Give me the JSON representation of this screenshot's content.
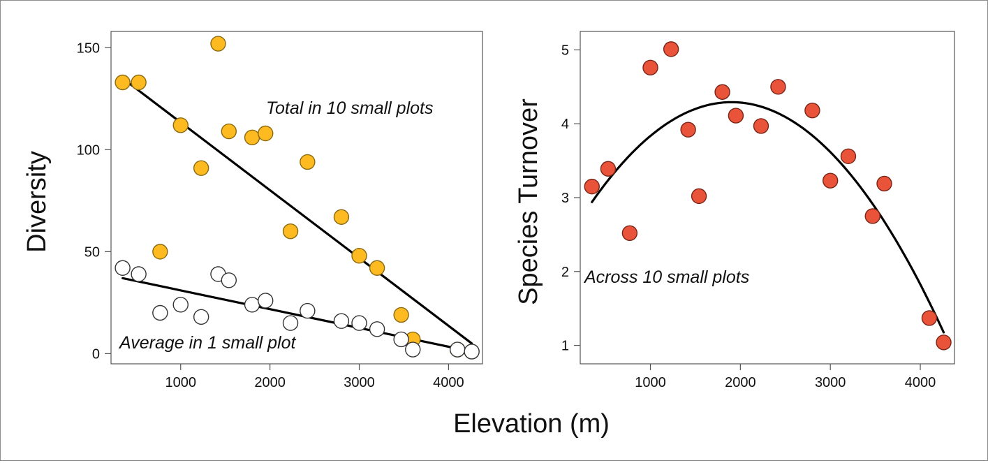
{
  "figure": {
    "shared_xlabel": "Elevation (m)"
  },
  "chart_data": [
    {
      "type": "scatter",
      "title": "",
      "xlabel": "",
      "ylabel": "Diversity",
      "xlim": [
        220,
        4380
      ],
      "ylim": [
        -5,
        158
      ],
      "xticks": [
        1000,
        2000,
        3000,
        4000
      ],
      "yticks": [
        0,
        50,
        100,
        150
      ],
      "grid": false,
      "annotations": [
        {
          "text": "Total in 10 small plots",
          "series": "total"
        },
        {
          "text": "Average in 1 small plot",
          "series": "average"
        }
      ],
      "series": [
        {
          "key": "total",
          "color": "#FDBA21",
          "stroke": "#8a6a10",
          "x": [
            350,
            530,
            770,
            1000,
            1230,
            1420,
            1540,
            1800,
            1950,
            2230,
            2420,
            2800,
            3000,
            3200,
            3470,
            3600,
            4100,
            4260
          ],
          "y": [
            133,
            133,
            50,
            112,
            91,
            152,
            109,
            106,
            108,
            60,
            94,
            67,
            48,
            42,
            19,
            7,
            2,
            1
          ],
          "fit": {
            "kind": "linear",
            "x": [
              350,
              4260
            ],
            "y": [
              135,
              5
            ]
          }
        },
        {
          "key": "average",
          "color": "#ffffff",
          "stroke": "#333333",
          "x": [
            350,
            530,
            770,
            1000,
            1230,
            1420,
            1540,
            1800,
            1950,
            2230,
            2420,
            2800,
            3000,
            3200,
            3470,
            3600,
            4100,
            4260
          ],
          "y": [
            42,
            39,
            20,
            24,
            18,
            39,
            36,
            24,
            26,
            15,
            21,
            16,
            15,
            12,
            7,
            2,
            2,
            1
          ],
          "fit": {
            "kind": "linear",
            "x": [
              350,
              4260
            ],
            "y": [
              37,
              1
            ]
          }
        }
      ]
    },
    {
      "type": "scatter",
      "title": "",
      "xlabel": "",
      "ylabel": "Species Turnover",
      "xlim": [
        220,
        4380
      ],
      "ylim": [
        0.75,
        5.25
      ],
      "xticks": [
        1000,
        2000,
        3000,
        4000
      ],
      "yticks": [
        1,
        2,
        3,
        4,
        5
      ],
      "grid": false,
      "annotations": [
        {
          "text": "Across 10 small plots"
        }
      ],
      "series": [
        {
          "key": "turnover",
          "color": "#E8533A",
          "stroke": "#7a2416",
          "x": [
            350,
            530,
            770,
            1000,
            1230,
            1420,
            1540,
            1800,
            1950,
            2230,
            2420,
            2800,
            3000,
            3200,
            3470,
            3600,
            4100,
            4260
          ],
          "y": [
            3.15,
            3.39,
            2.52,
            4.76,
            5.01,
            3.92,
            3.02,
            4.43,
            4.11,
            3.97,
            4.5,
            4.18,
            3.23,
            3.56,
            2.75,
            3.19,
            1.37,
            1.04
          ],
          "fit": {
            "kind": "quadratic",
            "x_range": [
              350,
              4260
            ],
            "coeffs": [
              2.2617,
              0.0021343,
              -5.6082e-07
            ]
          }
        }
      ]
    }
  ]
}
